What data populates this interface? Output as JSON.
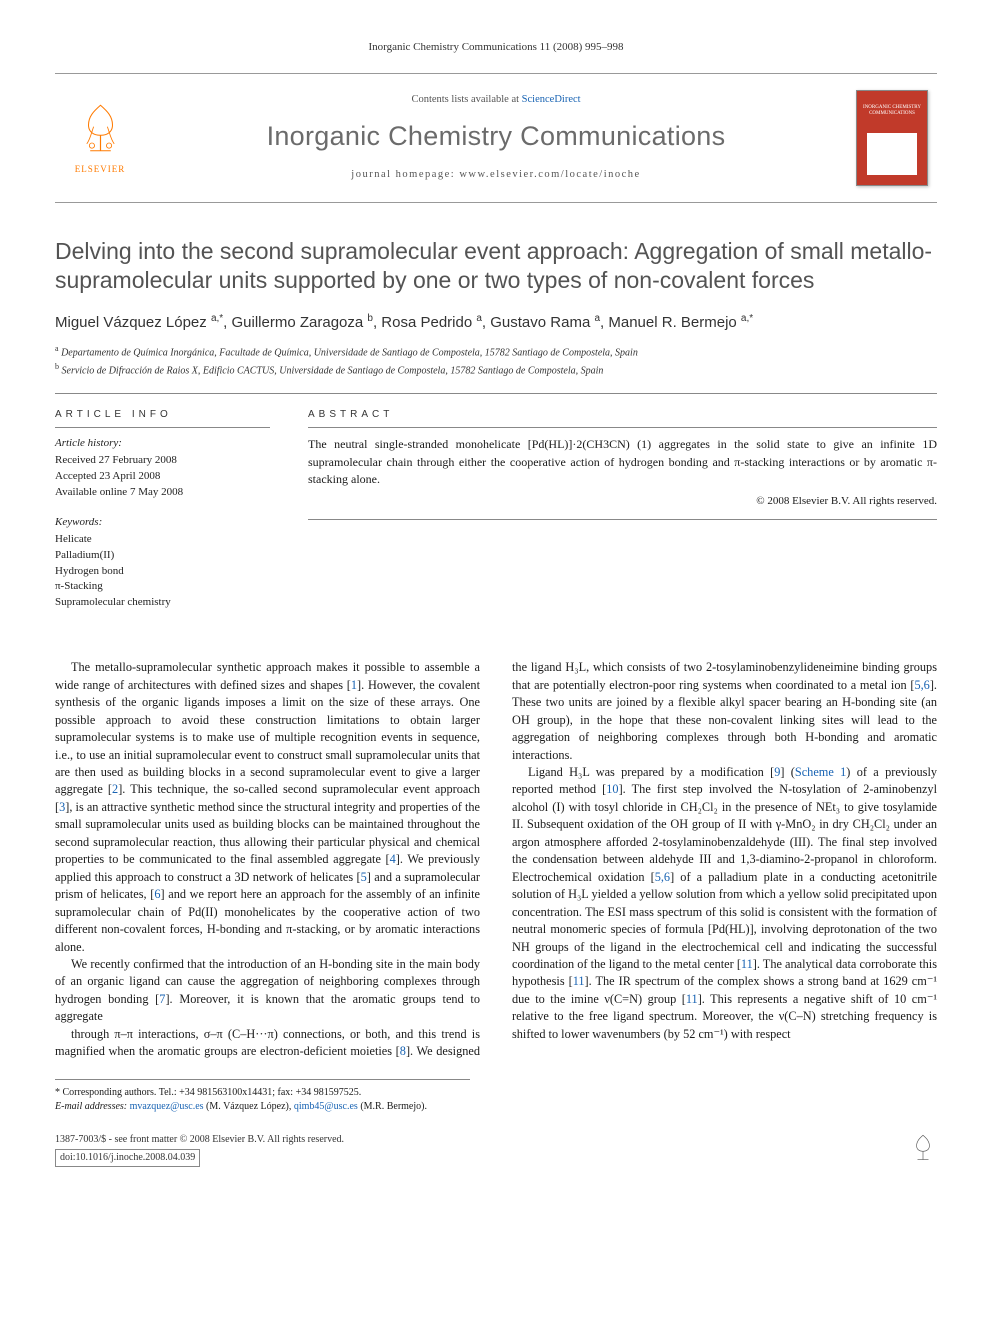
{
  "running_header": "Inorganic Chemistry Communications 11 (2008) 995–998",
  "masthead": {
    "contents_prefix": "Contents lists available at ",
    "contents_link": "ScienceDirect",
    "journal_name": "Inorganic Chemistry Communications",
    "homepage_prefix": "journal homepage: ",
    "homepage_url": "www.elsevier.com/locate/inoche",
    "publisher": "ELSEVIER",
    "cover_label": "INORGANIC CHEMISTRY COMMUNICATIONS"
  },
  "article": {
    "title": "Delving into the second supramolecular event approach: Aggregation of small metallo-supramolecular units supported by one or two types of non-covalent forces",
    "authors_html": "Miguel Vázquez López <sup>a,*</sup>, Guillermo Zaragoza <sup>b</sup>, Rosa Pedrido <sup>a</sup>, Gustavo Rama <sup>a</sup>, Manuel R. Bermejo <sup>a,*</sup>",
    "affiliations": {
      "a": "Departamento de Química Inorgánica, Facultade de Química, Universidade de Santiago de Compostela, 15782 Santiago de Compostela, Spain",
      "b": "Servicio de Difracción de Raios X, Edificio CACTUS, Universidade de Santiago de Compostela, 15782 Santiago de Compostela, Spain"
    }
  },
  "info": {
    "heading": "ARTICLE INFO",
    "history_label": "Article history:",
    "history": [
      "Received 27 February 2008",
      "Accepted 23 April 2008",
      "Available online 7 May 2008"
    ],
    "keywords_label": "Keywords:",
    "keywords": [
      "Helicate",
      "Palladium(II)",
      "Hydrogen bond",
      "π-Stacking",
      "Supramolecular chemistry"
    ]
  },
  "abstract": {
    "heading": "ABSTRACT",
    "text": "The neutral single-stranded monohelicate [Pd(HL)]·2(CH3CN) (1) aggregates in the solid state to give an infinite 1D supramolecular chain through either the cooperative action of hydrogen bonding and π-stacking interactions or by aromatic π-stacking alone.",
    "copyright": "© 2008 Elsevier B.V. All rights reserved."
  },
  "body": {
    "p1": "The metallo-supramolecular synthetic approach makes it possible to assemble a wide range of architectures with defined sizes and shapes [1]. However, the covalent synthesis of the organic ligands imposes a limit on the size of these arrays. One possible approach to avoid these construction limitations to obtain larger supramolecular systems is to make use of multiple recognition events in sequence, i.e., to use an initial supramolecular event to construct small supramolecular units that are then used as building blocks in a second supramolecular event to give a larger aggregate [2]. This technique, the so-called second supramolecular event approach [3], is an attractive synthetic method since the structural integrity and properties of the small supramolecular units used as building blocks can be maintained throughout the second supramolecular reaction, thus allowing their particular physical and chemical properties to be communicated to the final assembled aggregate [4]. We previously applied this approach to construct a 3D network of helicates [5] and a supramolecular prism of helicates, [6] and we report here an approach for the assembly of an infinite supramolecular chain of Pd(II) monohelicates by the cooperative action of two different non-covalent forces, H-bonding and π-stacking, or by aromatic interactions alone.",
    "p2": "We recently confirmed that the introduction of an H-bonding site in the main body of an organic ligand can cause the aggregation of neighboring complexes through hydrogen bonding [7]. Moreover, it is known that the aromatic groups tend to aggregate",
    "p3": "through π–π interactions, σ–π (C–H···π) connections, or both, and this trend is magnified when the aromatic groups are electron-deficient moieties [8]. We designed the ligand H₃L, which consists of two 2-tosylaminobenzylideneimine binding groups that are potentially electron-poor ring systems when coordinated to a metal ion [5,6]. These two units are joined by a flexible alkyl spacer bearing an H-bonding site (an OH group), in the hope that these non-covalent linking sites will lead to the aggregation of neighboring complexes through both H-bonding and aromatic interactions.",
    "p4": "Ligand H₃L was prepared by a modification [9] (Scheme 1) of a previously reported method [10]. The first step involved the N-tosylation of 2-aminobenzyl alcohol (I) with tosyl chloride in CH₂Cl₂ in the presence of NEt₃ to give tosylamide II. Subsequent oxidation of the OH group of II with γ-MnO₂ in dry CH₂Cl₂ under an argon atmosphere afforded 2-tosylaminobenzaldehyde (III). The final step involved the condensation between aldehyde III and 1,3-diamino-2-propanol in chloroform. Electrochemical oxidation [5,6] of a palladium plate in a conducting acetonitrile solution of H₃L yielded a yellow solution from which a yellow solid precipitated upon concentration. The ESI mass spectrum of this solid is consistent with the formation of neutral monomeric species of formula [Pd(HL)], involving deprotonation of the two NH groups of the ligand in the electrochemical cell and indicating the successful coordination of the ligand to the metal center [11]. The analytical data corroborate this hypothesis [11]. The IR spectrum of the complex shows a strong band at 1629 cm⁻¹ due to the imine ν(C=N) group [11]. This represents a negative shift of 10 cm⁻¹ relative to the free ligand spectrum. Moreover, the ν(C–N) stretching frequency is shifted to lower wavenumbers (by 52 cm⁻¹) with respect"
  },
  "footnotes": {
    "corr": "* Corresponding authors. Tel.: +34 981563100x14431; fax: +34 981597525.",
    "email_label": "E-mail addresses:",
    "email1": "mvazquez@usc.es",
    "email1_who": "(M. Vázquez López),",
    "email2": "qimb45@usc.es",
    "email2_who": "(M.R. Bermejo)."
  },
  "bottom": {
    "issn_line": "1387-7003/$ - see front matter © 2008 Elsevier B.V. All rights reserved.",
    "doi": "doi:10.1016/j.inoche.2008.04.039"
  },
  "colors": {
    "link": "#1863b3",
    "elsevier_orange": "#ff7a00",
    "cover_red": "#c13a2a",
    "rule": "#888888",
    "title_gray": "#535353",
    "journal_gray": "#6b6b6b"
  }
}
